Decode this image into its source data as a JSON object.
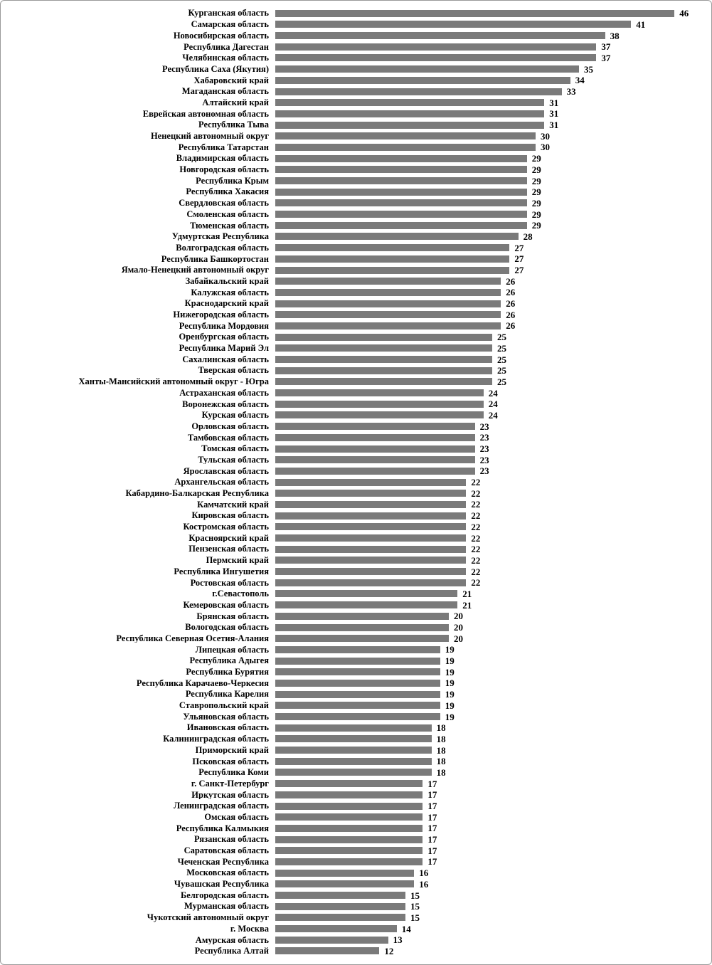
{
  "chart_data": {
    "type": "bar",
    "orientation": "horizontal",
    "title": "",
    "xlabel": "",
    "ylabel": "",
    "xlim": [
      0,
      47
    ],
    "grid": false,
    "bar_color": "#7a7a7a",
    "categories": [
      "Курганская область",
      "Самарская область",
      "Новосибирская область",
      "Республика Дагестан",
      "Челябинская область",
      "Республика Саха (Якутия)",
      "Хабаровский край",
      "Магаданская область",
      "Алтайский край",
      "Еврейская автономная область",
      "Республика Тыва",
      "Ненецкий автономный округ",
      "Республика Татарстан",
      "Владимирская область",
      "Новгородская область",
      "Республика Крым",
      "Республика Хакасия",
      "Свердловская область",
      "Смоленская область",
      "Тюменская область",
      "Удмуртская Республика",
      "Волгоградская область",
      "Республика Башкортостан",
      "Ямало-Ненецкий автономный округ",
      "Забайкальский край",
      "Калужская область",
      "Краснодарский край",
      "Нижегородская область",
      "Республика Мордовия",
      "Оренбургская область",
      "Республика Марий Эл",
      "Сахалинская область",
      "Тверская область",
      "Ханты-Мансийский автономный округ - Югра",
      "Астраханская область",
      "Воронежская область",
      "Курская область",
      "Орловская область",
      "Тамбовская область",
      "Томская область",
      "Тульская область",
      "Ярославская область",
      "Архангельская область",
      "Кабардино-Балкарская Республика",
      "Камчатский край",
      "Кировская область",
      "Костромская область",
      "Красноярский край",
      "Пензенская область",
      "Пермский край",
      "Республика Ингушетия",
      "Ростовская область",
      "г.Севастополь",
      "Кемеровская область",
      "Брянская область",
      "Вологодская область",
      "Республика Северная Осетия-Алания",
      "Липецкая область",
      "Республика Адыгея",
      "Республика Бурятия",
      "Республика Карачаево-Черкесия",
      "Республика Карелия",
      "Ставропольский край",
      "Ульяновская область",
      "Ивановская область",
      "Калининградская область",
      "Приморский край",
      "Псковская область",
      "Республика Коми",
      "г. Санкт-Петербург",
      "Иркутская область",
      "Ленинградская область",
      "Омская область",
      "Республика Калмыкия",
      "Рязанская область",
      "Саратовская область",
      "Чеченская Республика",
      "Московская область",
      "Чувашская Республика",
      "Белгородская область",
      "Мурманская область",
      "Чукотский автономный округ",
      "г. Москва",
      "Амурская область",
      "Республика Алтай"
    ],
    "values": [
      46,
      41,
      38,
      37,
      37,
      35,
      34,
      33,
      31,
      31,
      31,
      30,
      30,
      29,
      29,
      29,
      29,
      29,
      29,
      29,
      28,
      27,
      27,
      27,
      26,
      26,
      26,
      26,
      26,
      25,
      25,
      25,
      25,
      25,
      24,
      24,
      24,
      23,
      23,
      23,
      23,
      23,
      22,
      22,
      22,
      22,
      22,
      22,
      22,
      22,
      22,
      22,
      21,
      21,
      20,
      20,
      20,
      19,
      19,
      19,
      19,
      19,
      19,
      19,
      18,
      18,
      18,
      18,
      18,
      17,
      17,
      17,
      17,
      17,
      17,
      17,
      17,
      16,
      16,
      15,
      15,
      15,
      14,
      13,
      12
    ]
  }
}
